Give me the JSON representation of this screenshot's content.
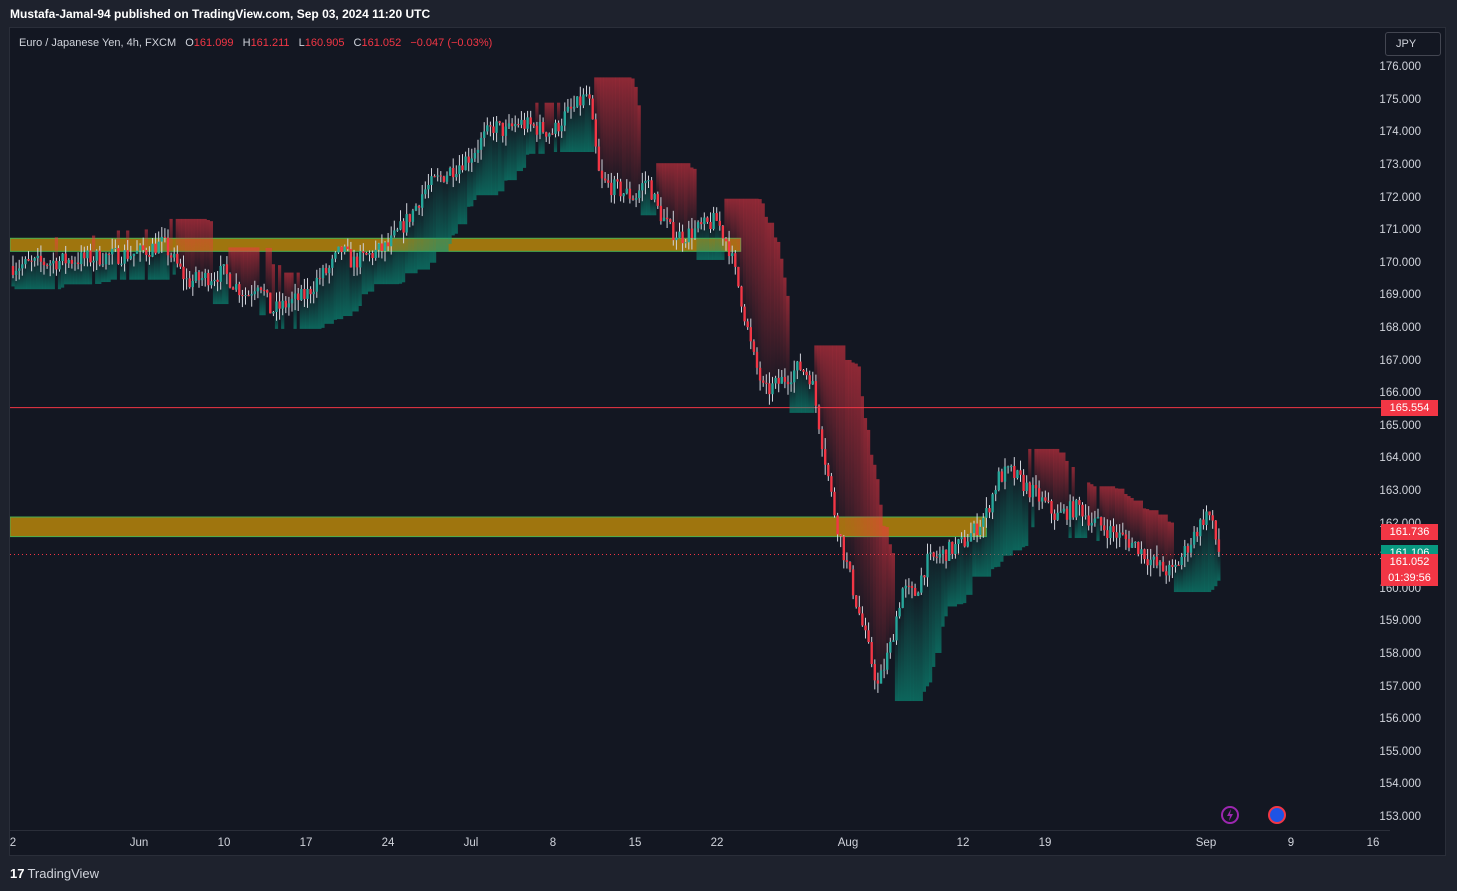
{
  "publication": "Mustafa-Jamal-94 published on TradingView.com, Sep 03, 2024 11:20 UTC",
  "legend": {
    "symbol": "Euro / Japanese Yen, 4h, FXCM",
    "o_label": "O",
    "o": "161.099",
    "h_label": "H",
    "h": "161.211",
    "l_label": "L",
    "l": "160.905",
    "c_label": "C",
    "c": "161.052",
    "change": "−0.047 (−0.03%)"
  },
  "currency_button": "JPY",
  "footer": {
    "logo_glyph": "17",
    "brand": "TradingView"
  },
  "icons": [
    "lightning-icon",
    "globe-icon"
  ],
  "colors": {
    "up": "#26a69a",
    "down": "#f23645",
    "zone": "#b8860b",
    "zone_border": "#4caf50",
    "h_line": "#f23645"
  },
  "chart_data": {
    "type": "candlestick",
    "symbol": "EURJPY",
    "timeframe": "4h",
    "ylim": [
      152.6,
      177.2
    ],
    "y_ticks": [
      "153.000",
      "154.000",
      "155.000",
      "156.000",
      "157.000",
      "158.000",
      "159.000",
      "160.000",
      "161.000",
      "162.000",
      "163.000",
      "164.000",
      "165.000",
      "166.000",
      "167.000",
      "168.000",
      "169.000",
      "170.000",
      "171.000",
      "172.000",
      "173.000",
      "174.000",
      "175.000",
      "176.000"
    ],
    "x_ticks": [
      "2",
      "Jun",
      "10",
      "17",
      "24",
      "Jul",
      "8",
      "15",
      "22",
      "Aug",
      "12",
      "19",
      "Sep",
      "9",
      "16"
    ],
    "path": [
      [
        "2024-05-31",
        169.9
      ],
      [
        "2024-06-03",
        170.3
      ],
      [
        "2024-06-05",
        170.6
      ],
      [
        "2024-06-06",
        170.0
      ],
      [
        "2024-06-07",
        169.4
      ],
      [
        "2024-06-10",
        169.7
      ],
      [
        "2024-06-11",
        169.3
      ],
      [
        "2024-06-12",
        169.0
      ],
      [
        "2024-06-13",
        169.5
      ],
      [
        "2024-06-14",
        168.5
      ],
      [
        "2024-06-17",
        169.0
      ],
      [
        "2024-06-18",
        169.5
      ],
      [
        "2024-06-19",
        169.8
      ],
      [
        "2024-06-20",
        170.4
      ],
      [
        "2024-06-21",
        170.0
      ],
      [
        "2024-06-24",
        170.5
      ],
      [
        "2024-06-25",
        171.0
      ],
      [
        "2024-06-26",
        171.5
      ],
      [
        "2024-06-27",
        172.2
      ],
      [
        "2024-06-28",
        172.5
      ],
      [
        "2024-07-01",
        173.3
      ],
      [
        "2024-07-02",
        173.8
      ],
      [
        "2024-07-03",
        174.2
      ],
      [
        "2024-07-04",
        174.0
      ],
      [
        "2024-07-05",
        174.3
      ],
      [
        "2024-07-08",
        174.0
      ],
      [
        "2024-07-09",
        174.5
      ],
      [
        "2024-07-10",
        174.8
      ],
      [
        "2024-07-11",
        175.2
      ],
      [
        "2024-07-12",
        172.5
      ],
      [
        "2024-07-15",
        172.0
      ],
      [
        "2024-07-16",
        172.6
      ],
      [
        "2024-07-17",
        171.6
      ],
      [
        "2024-07-18",
        171.0
      ],
      [
        "2024-07-19",
        170.8
      ],
      [
        "2024-07-22",
        171.3
      ],
      [
        "2024-07-23",
        170.5
      ],
      [
        "2024-07-24",
        169.0
      ],
      [
        "2024-07-25",
        167.2
      ],
      [
        "2024-07-26",
        166.0
      ],
      [
        "2024-07-29",
        166.8
      ],
      [
        "2024-07-30",
        166.5
      ],
      [
        "2024-07-31",
        164.5
      ],
      [
        "2024-08-01",
        162.5
      ],
      [
        "2024-08-02",
        161.0
      ],
      [
        "2024-08-05",
        157.0
      ],
      [
        "2024-08-06",
        158.2
      ],
      [
        "2024-08-07",
        160.0
      ],
      [
        "2024-08-08",
        159.8
      ],
      [
        "2024-08-09",
        160.8
      ],
      [
        "2024-08-12",
        161.4
      ],
      [
        "2024-08-13",
        161.8
      ],
      [
        "2024-08-14",
        162.3
      ],
      [
        "2024-08-15",
        163.4
      ],
      [
        "2024-08-16",
        163.6
      ],
      [
        "2024-08-19",
        162.6
      ],
      [
        "2024-08-20",
        162.2
      ],
      [
        "2024-08-21",
        162.4
      ],
      [
        "2024-08-22",
        162.5
      ],
      [
        "2024-08-23",
        162.1
      ],
      [
        "2024-08-26",
        161.5
      ],
      [
        "2024-08-27",
        161.3
      ],
      [
        "2024-08-28",
        160.9
      ],
      [
        "2024-08-29",
        160.6
      ],
      [
        "2024-08-30",
        160.5
      ],
      [
        "2024-09-02",
        162.4
      ],
      [
        "2024-09-03",
        161.052
      ]
    ],
    "zones": [
      {
        "from": 170.35,
        "to": 170.75,
        "start": "2024-05-31",
        "end": "2024-07-24"
      },
      {
        "from": 161.6,
        "to": 162.2,
        "start": "2024-05-31",
        "end": "2024-08-14"
      }
    ],
    "horizontal_line": 165.554,
    "price_labels": [
      {
        "value": "165.554",
        "y": 165.554,
        "color": "#f23645"
      },
      {
        "value": "161.736",
        "y": 161.736,
        "color": "#f23645"
      },
      {
        "value": "161.106",
        "y": 161.106,
        "color": "#089981"
      },
      {
        "value": "161.052",
        "y": 161.052,
        "color": "#f23645"
      }
    ],
    "countdown": "01:39:56",
    "last_price": 161.052
  }
}
